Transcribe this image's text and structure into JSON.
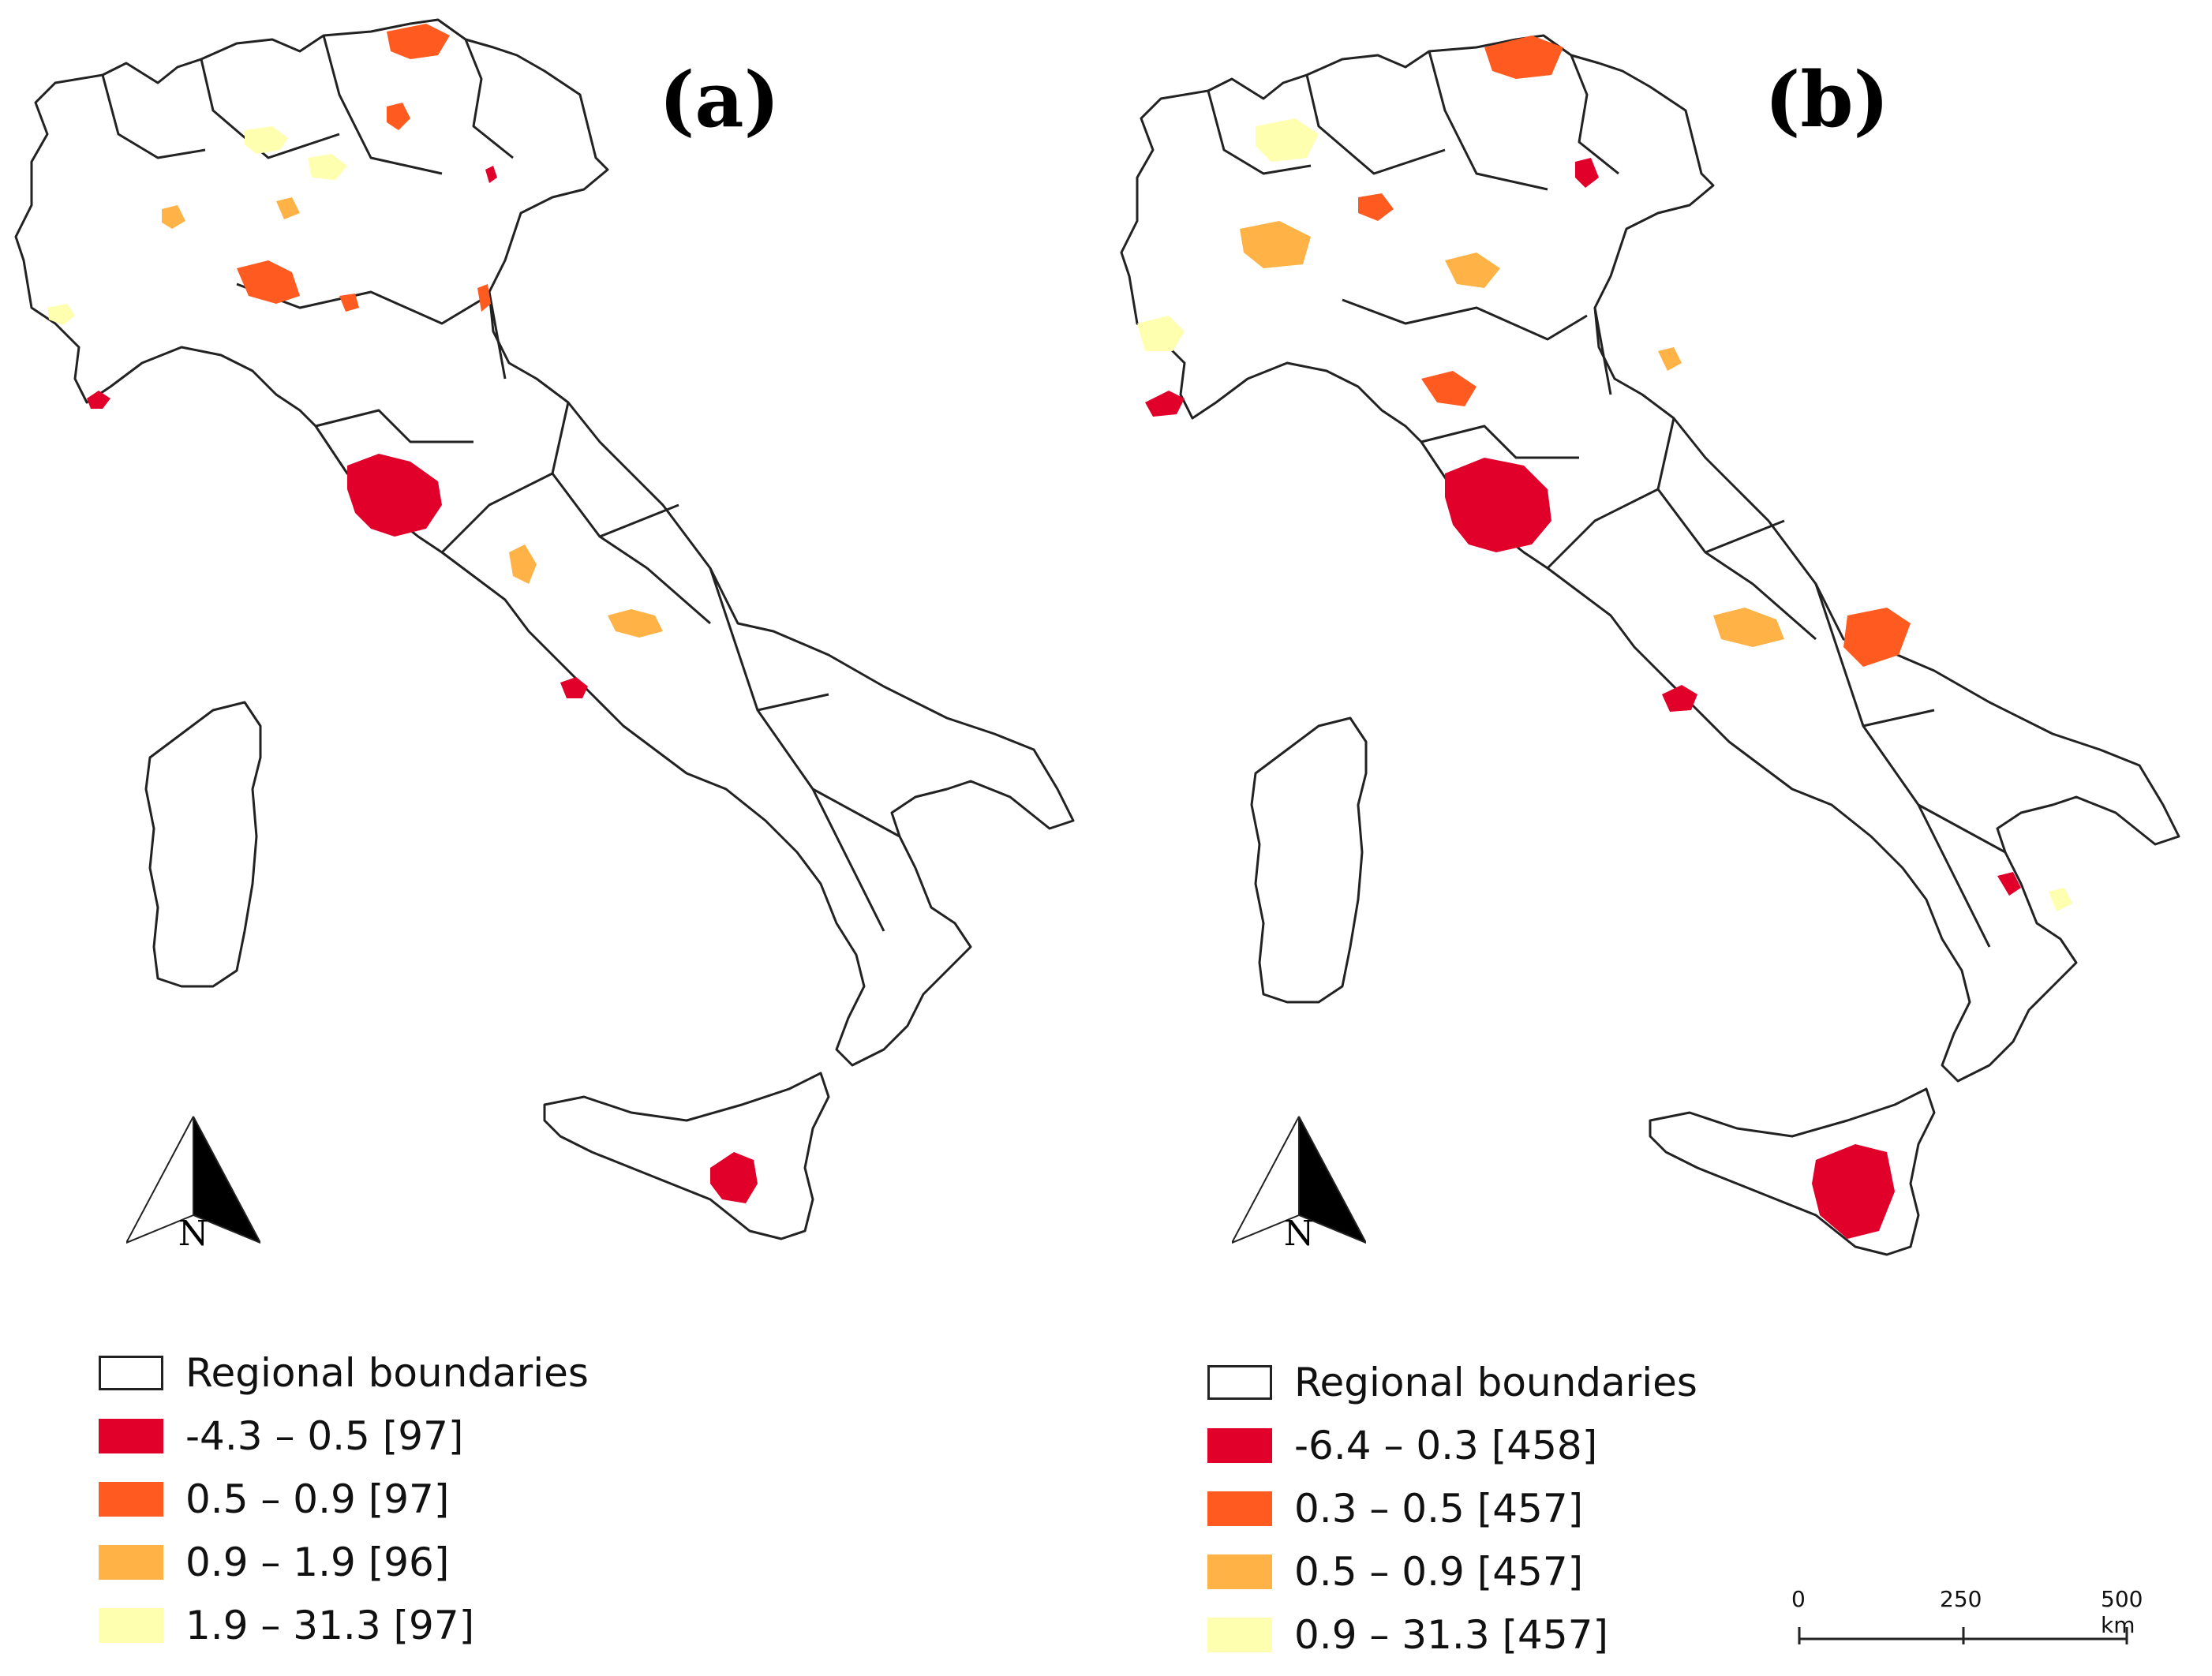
{
  "panels": [
    {
      "id": "a",
      "label": "(a)",
      "legend": [
        {
          "label": "Regional boundaries",
          "color": "#ffffff",
          "outline": true
        },
        {
          "label": "-4.3 – 0.5 [97]",
          "color": "#e0002a"
        },
        {
          "label": "0.5 – 0.9 [97]",
          "color": "#ff5a1f"
        },
        {
          "label": "0.9 – 1.9 [96]",
          "color": "#ffb347"
        },
        {
          "label": "1.9 – 31.3 [97]",
          "color": "#ffffb0"
        }
      ]
    },
    {
      "id": "b",
      "label": "(b)",
      "legend": [
        {
          "label": "Regional boundaries",
          "color": "#ffffff",
          "outline": true
        },
        {
          "label": "-6.4 – 0.3 [458]",
          "color": "#e0002a"
        },
        {
          "label": "0.3 – 0.5 [457]",
          "color": "#ff5a1f"
        },
        {
          "label": "0.5 – 0.9 [457]",
          "color": "#ffb347"
        },
        {
          "label": "0.9 – 31.3 [457]",
          "color": "#ffffb0"
        }
      ]
    }
  ],
  "north_arrow": {
    "letter": "N"
  },
  "scale_bar": {
    "ticks": [
      "0",
      "250",
      "500 km"
    ]
  }
}
